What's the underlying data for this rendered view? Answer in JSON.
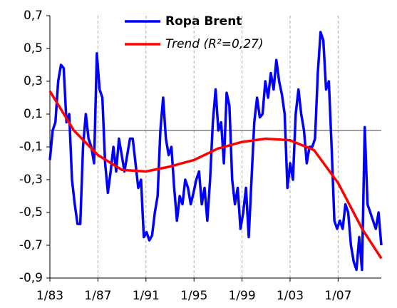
{
  "chart_data": {
    "type": "line",
    "xlim": [
      1983,
      2010.6
    ],
    "xticks": [
      {
        "value": 1983,
        "label": "1/83"
      },
      {
        "value": 1987,
        "label": "1/87"
      },
      {
        "value": 1991,
        "label": "1/91"
      },
      {
        "value": 1995,
        "label": "1/95"
      },
      {
        "value": 1999,
        "label": "1/99"
      },
      {
        "value": 2003,
        "label": "1/03"
      },
      {
        "value": 2007,
        "label": "1/07"
      }
    ],
    "ylim": [
      -0.9,
      0.7
    ],
    "yticks": [
      {
        "value": -0.9,
        "label": "-0,9"
      },
      {
        "value": -0.7,
        "label": "-0,7"
      },
      {
        "value": -0.5,
        "label": "-0,5"
      },
      {
        "value": -0.3,
        "label": "-0,3"
      },
      {
        "value": -0.1,
        "label": "-0,1"
      },
      {
        "value": 0.1,
        "label": "0,1"
      },
      {
        "value": 0.3,
        "label": "0,3"
      },
      {
        "value": 0.5,
        "label": "0,5"
      },
      {
        "value": 0.7,
        "label": "0,7"
      }
    ],
    "grid": "x-dashed",
    "legend": "top",
    "series": [
      {
        "name": "Ropa Brent",
        "color": "#0000ff",
        "x": [
          1983,
          1983.23,
          1983.46,
          1983.69,
          1983.92,
          1984.15,
          1984.38,
          1984.61,
          1984.84,
          1985.07,
          1985.3,
          1985.53,
          1985.76,
          1985.99,
          1986.22,
          1986.45,
          1986.68,
          1986.91,
          1987.14,
          1987.37,
          1987.6,
          1987.83,
          1988.06,
          1988.29,
          1988.52,
          1988.75,
          1988.98,
          1989.21,
          1989.44,
          1989.67,
          1989.9,
          1990.13,
          1990.36,
          1990.59,
          1990.82,
          1991.05,
          1991.28,
          1991.51,
          1991.74,
          1991.97,
          1992.2,
          1992.43,
          1992.66,
          1992.89,
          1993.12,
          1993.35,
          1993.58,
          1993.81,
          1994.04,
          1994.27,
          1994.5,
          1994.73,
          1994.96,
          1995.19,
          1995.42,
          1995.65,
          1995.88,
          1996.11,
          1996.34,
          1996.57,
          1996.8,
          1997.03,
          1997.26,
          1997.49,
          1997.72,
          1997.95,
          1998.18,
          1998.41,
          1998.64,
          1998.87,
          1999.1,
          1999.33,
          1999.56,
          1999.79,
          2000.02,
          2000.25,
          2000.48,
          2000.71,
          2000.94,
          2001.17,
          2001.4,
          2001.63,
          2001.86,
          2002.09,
          2002.32,
          2002.55,
          2002.78,
          2003.01,
          2003.24,
          2003.47,
          2003.7,
          2003.93,
          2004.16,
          2004.39,
          2004.62,
          2004.85,
          2005.08,
          2005.31,
          2005.54,
          2005.77,
          2006,
          2006.23,
          2006.46,
          2006.69,
          2006.92,
          2007.15,
          2007.38,
          2007.61,
          2007.84,
          2008.07,
          2008.3,
          2008.53,
          2008.76,
          2008.99,
          2009.22,
          2009.45,
          2009.68,
          2009.91,
          2010.14,
          2010.37,
          2010.6
        ],
        "values": [
          -0.18,
          0.0,
          0.05,
          0.3,
          0.4,
          0.38,
          0.05,
          0.1,
          -0.3,
          -0.45,
          -0.57,
          -0.57,
          -0.1,
          0.1,
          -0.05,
          -0.1,
          -0.2,
          0.47,
          0.25,
          0.2,
          -0.2,
          -0.38,
          -0.25,
          -0.1,
          -0.25,
          -0.05,
          -0.15,
          -0.25,
          -0.15,
          -0.05,
          -0.05,
          -0.2,
          -0.35,
          -0.3,
          -0.65,
          -0.62,
          -0.67,
          -0.64,
          -0.5,
          -0.4,
          0.0,
          0.2,
          -0.05,
          -0.15,
          -0.1,
          -0.35,
          -0.55,
          -0.4,
          -0.45,
          -0.3,
          -0.35,
          -0.45,
          -0.38,
          -0.3,
          -0.25,
          -0.45,
          -0.35,
          -0.55,
          -0.3,
          0.05,
          0.25,
          0.0,
          0.05,
          -0.2,
          0.23,
          0.15,
          -0.3,
          -0.45,
          -0.35,
          -0.6,
          -0.5,
          -0.35,
          -0.65,
          -0.3,
          0.05,
          0.2,
          0.08,
          0.1,
          0.3,
          0.2,
          0.35,
          0.25,
          0.43,
          0.3,
          0.22,
          0.1,
          -0.35,
          -0.2,
          -0.3,
          0.1,
          0.25,
          0.1,
          0.0,
          -0.2,
          -0.1,
          -0.1,
          -0.05,
          0.35,
          0.6,
          0.55,
          0.25,
          0.3,
          -0.1,
          -0.55,
          -0.6,
          -0.55,
          -0.6,
          -0.45,
          -0.5,
          -0.7,
          -0.8,
          -0.85,
          -0.65,
          -0.85,
          0.02,
          -0.45,
          -0.5,
          -0.55,
          -0.6,
          -0.5,
          -0.7
        ]
      },
      {
        "name": "Trend (R²=0,27)",
        "color": "#ff0000",
        "x": [
          1983,
          1985,
          1987,
          1989,
          1991,
          1993,
          1995,
          1997,
          1999,
          2001,
          2003,
          2005,
          2007,
          2009,
          2010.6
        ],
        "values": [
          0.24,
          0.0,
          -0.15,
          -0.24,
          -0.25,
          -0.22,
          -0.18,
          -0.11,
          -0.07,
          -0.05,
          -0.06,
          -0.12,
          -0.32,
          -0.6,
          -0.78
        ]
      }
    ]
  }
}
